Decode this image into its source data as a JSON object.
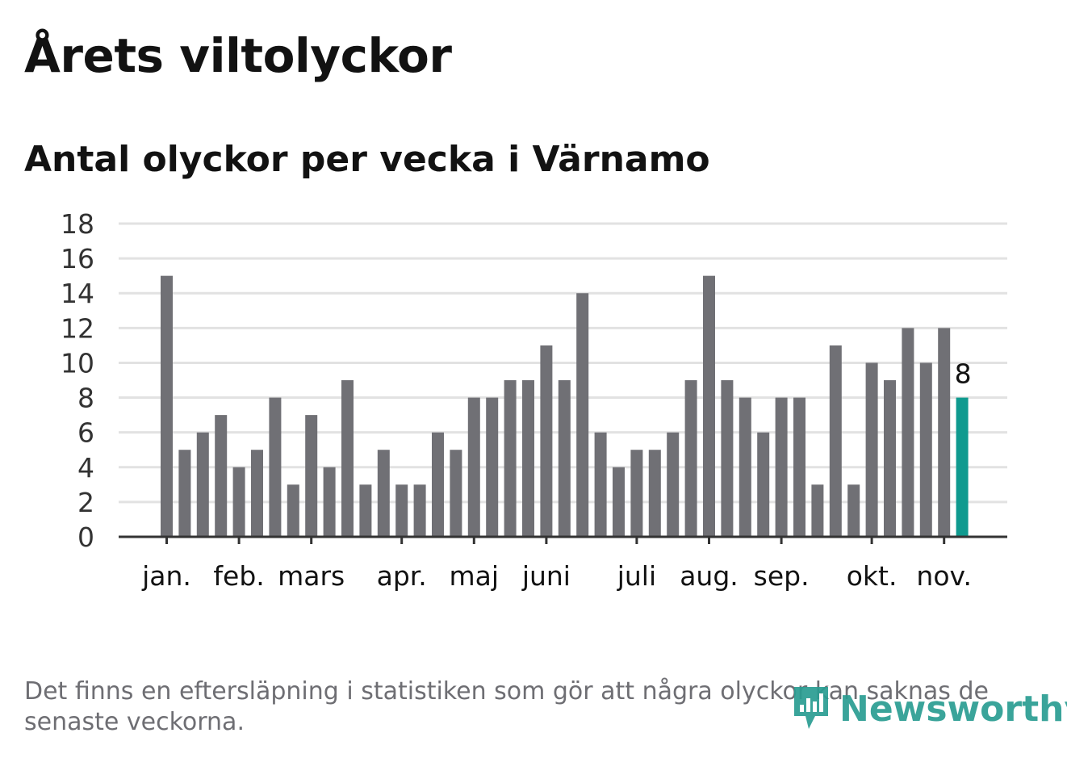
{
  "title": "Årets viltolyckor",
  "subtitle": "Antal olyckor per vecka i Värnamo",
  "note": "Det finns en eftersläpning i statistiken som gör att några olyckor kan saknas de senaste veckorna.",
  "logo_text": "Newsworthy",
  "colors": {
    "bar": "#707075",
    "highlight": "#0f9a8f",
    "grid": "#e2e2e2",
    "axis": "#333333"
  },
  "chart_data": {
    "type": "bar",
    "title": "Antal olyckor per vecka i Värnamo",
    "xlabel": "",
    "ylabel": "",
    "ylim": [
      0,
      18
    ],
    "yticks": [
      0,
      2,
      4,
      6,
      8,
      10,
      12,
      14,
      16,
      18
    ],
    "grid": true,
    "values": [
      15,
      5,
      6,
      7,
      4,
      5,
      8,
      3,
      7,
      4,
      9,
      3,
      5,
      3,
      3,
      6,
      5,
      8,
      8,
      9,
      9,
      11,
      9,
      14,
      6,
      4,
      5,
      5,
      6,
      9,
      15,
      9,
      8,
      6,
      8,
      8,
      3,
      11,
      3,
      10,
      9,
      12,
      10,
      12,
      8
    ],
    "highlight_index": 44,
    "highlight_label": "8",
    "month_labels": [
      {
        "label": "jan.",
        "week_index": 0
      },
      {
        "label": "feb.",
        "week_index": 4
      },
      {
        "label": "mars",
        "week_index": 8
      },
      {
        "label": "apr.",
        "week_index": 13
      },
      {
        "label": "maj",
        "week_index": 17
      },
      {
        "label": "juni",
        "week_index": 21
      },
      {
        "label": "juli",
        "week_index": 26
      },
      {
        "label": "aug.",
        "week_index": 30
      },
      {
        "label": "sep.",
        "week_index": 34
      },
      {
        "label": "okt.",
        "week_index": 39
      },
      {
        "label": "nov.",
        "week_index": 43
      }
    ]
  }
}
